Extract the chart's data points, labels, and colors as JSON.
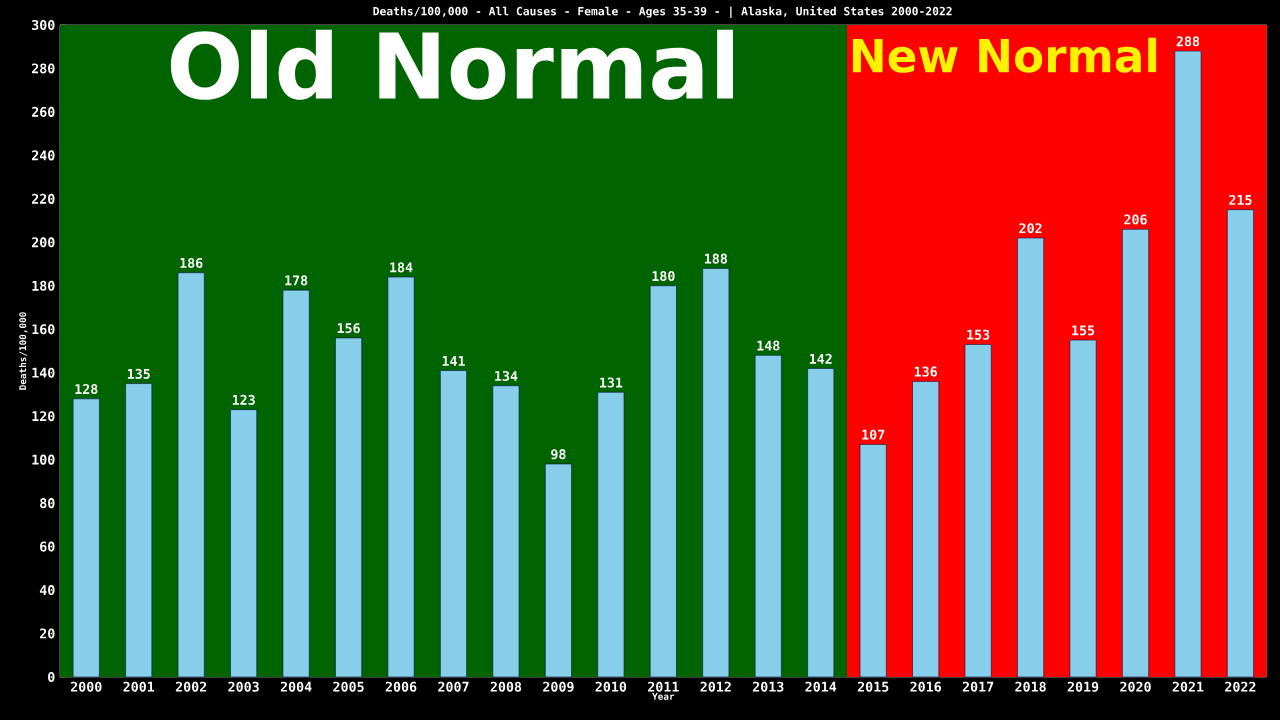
{
  "chart_data": {
    "type": "bar",
    "title": "Deaths/100,000 - All Causes - Female - Ages 35-39 -  | Alaska, United States 2000-2022",
    "xlabel": "Year",
    "ylabel": "Deaths/100,000",
    "categories": [
      "2000",
      "2001",
      "2002",
      "2003",
      "2004",
      "2005",
      "2006",
      "2007",
      "2008",
      "2009",
      "2010",
      "2011",
      "2012",
      "2013",
      "2014",
      "2015",
      "2016",
      "2017",
      "2018",
      "2019",
      "2020",
      "2021",
      "2022"
    ],
    "values": [
      128,
      135,
      186,
      123,
      178,
      156,
      184,
      141,
      134,
      98,
      131,
      180,
      188,
      148,
      142,
      107,
      136,
      153,
      202,
      155,
      206,
      288,
      215
    ],
    "color": "#87ceeb",
    "data_labels": true,
    "grid": false,
    "ylim": [
      0,
      300
    ],
    "yticks": [
      0,
      20,
      40,
      60,
      80,
      100,
      120,
      140,
      160,
      180,
      200,
      220,
      240,
      260,
      280,
      300
    ],
    "bands": [
      {
        "axis": "x",
        "from": "2000",
        "to": "2014",
        "label": "Old Normal",
        "color": "#006400"
      },
      {
        "axis": "x",
        "from": "2015",
        "to": "2022",
        "label": "New Normal",
        "color": "#ff0000"
      }
    ]
  }
}
